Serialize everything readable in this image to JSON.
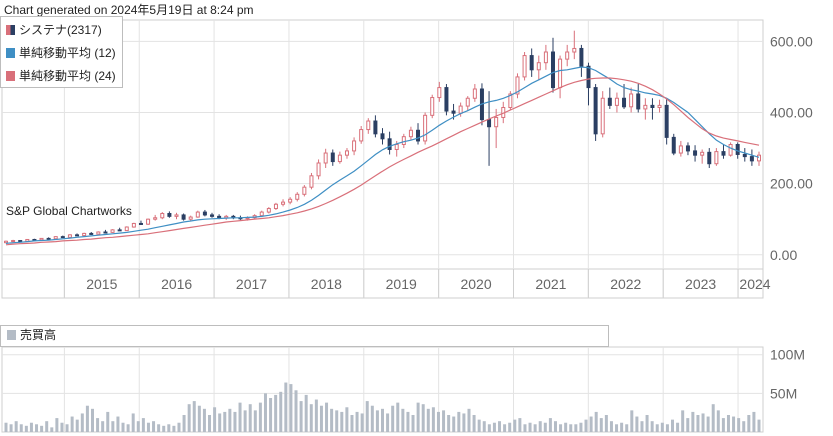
{
  "header": {
    "generated": "Chart generated on 2024年5月19日 at 8:24 pm"
  },
  "legend": {
    "items": [
      {
        "label": "システナ(2317)",
        "color": "#d9707a"
      },
      {
        "label": "単純移動平均 (12)",
        "color": "#3f8fc4"
      },
      {
        "label": "単純移動平均 (24)",
        "color": "#d9707a"
      }
    ]
  },
  "watermark": "S&P Global Chartworks",
  "volume_legend": {
    "label": "売買高"
  },
  "colors": {
    "up": "#d9707a",
    "down": "#2b3f63",
    "sma12": "#3f8fc4",
    "sma24": "#d9707a",
    "volume": "#b4bcc6",
    "grid": "#e3e3e3"
  },
  "chart_data": [
    {
      "type": "candlestick",
      "x_ticks": [
        "2015",
        "2016",
        "2017",
        "2018",
        "2019",
        "2020",
        "2021",
        "2022",
        "2023",
        "2024"
      ],
      "y_ticks": [
        "0.00",
        "200.00",
        "400.00",
        "600.00"
      ],
      "ylim": [
        -40,
        660
      ],
      "x_start": "2014-03",
      "x_end": "2024-05",
      "ohlc": [
        [
          34,
          40,
          32,
          38
        ],
        [
          38,
          42,
          36,
          40
        ],
        [
          40,
          41,
          37,
          38
        ],
        [
          38,
          44,
          37,
          43
        ],
        [
          43,
          45,
          41,
          42
        ],
        [
          42,
          47,
          41,
          46
        ],
        [
          46,
          49,
          44,
          45
        ],
        [
          45,
          52,
          44,
          51
        ],
        [
          51,
          54,
          48,
          49
        ],
        [
          49,
          58,
          48,
          56
        ],
        [
          56,
          60,
          53,
          54
        ],
        [
          54,
          62,
          53,
          60
        ],
        [
          60,
          64,
          56,
          58
        ],
        [
          58,
          66,
          57,
          64
        ],
        [
          64,
          70,
          62,
          63
        ],
        [
          63,
          72,
          62,
          70
        ],
        [
          70,
          76,
          67,
          68
        ],
        [
          68,
          80,
          67,
          78
        ],
        [
          78,
          90,
          76,
          88
        ],
        [
          88,
          96,
          84,
          86
        ],
        [
          86,
          102,
          84,
          100
        ],
        [
          100,
          112,
          96,
          104
        ],
        [
          104,
          120,
          100,
          116
        ],
        [
          116,
          122,
          104,
          108
        ],
        [
          108,
          118,
          100,
          112
        ],
        [
          112,
          116,
          96,
          100
        ],
        [
          100,
          110,
          96,
          106
        ],
        [
          106,
          124,
          104,
          120
        ],
        [
          120,
          126,
          108,
          112
        ],
        [
          112,
          118,
          104,
          108
        ],
        [
          108,
          114,
          100,
          104
        ],
        [
          104,
          112,
          98,
          108
        ],
        [
          108,
          112,
          100,
          104
        ],
        [
          104,
          110,
          98,
          102
        ],
        [
          102,
          108,
          96,
          104
        ],
        [
          104,
          114,
          100,
          110
        ],
        [
          110,
          124,
          106,
          120
        ],
        [
          120,
          134,
          116,
          130
        ],
        [
          130,
          146,
          126,
          142
        ],
        [
          142,
          156,
          136,
          148
        ],
        [
          148,
          162,
          142,
          156
        ],
        [
          156,
          176,
          150,
          170
        ],
        [
          170,
          196,
          164,
          190
        ],
        [
          190,
          230,
          184,
          222
        ],
        [
          222,
          268,
          212,
          258
        ],
        [
          258,
          298,
          244,
          286
        ],
        [
          286,
          296,
          250,
          262
        ],
        [
          262,
          290,
          256,
          280
        ],
        [
          280,
          300,
          270,
          292
        ],
        [
          292,
          330,
          280,
          320
        ],
        [
          320,
          362,
          312,
          352
        ],
        [
          352,
          384,
          340,
          376
        ],
        [
          376,
          392,
          330,
          340
        ],
        [
          340,
          356,
          310,
          326
        ],
        [
          326,
          346,
          282,
          296
        ],
        [
          296,
          320,
          276,
          310
        ],
        [
          310,
          340,
          300,
          332
        ],
        [
          332,
          360,
          322,
          350
        ],
        [
          350,
          370,
          310,
          320
        ],
        [
          320,
          400,
          310,
          392
        ],
        [
          392,
          450,
          384,
          442
        ],
        [
          442,
          486,
          430,
          470
        ],
        [
          470,
          480,
          392,
          404
        ],
        [
          404,
          424,
          380,
          398
        ],
        [
          398,
          428,
          388,
          418
        ],
        [
          418,
          446,
          404,
          440
        ],
        [
          440,
          480,
          430,
          466
        ],
        [
          466,
          482,
          364,
          380
        ],
        [
          380,
          460,
          250,
          360
        ],
        [
          360,
          410,
          300,
          386
        ],
        [
          386,
          430,
          370,
          414
        ],
        [
          414,
          460,
          406,
          452
        ],
        [
          452,
          510,
          440,
          500
        ],
        [
          500,
          570,
          490,
          560
        ],
        [
          560,
          580,
          500,
          520
        ],
        [
          520,
          560,
          490,
          540
        ],
        [
          540,
          590,
          520,
          570
        ],
        [
          570,
          610,
          456,
          470
        ],
        [
          470,
          560,
          440,
          550
        ],
        [
          550,
          590,
          530,
          570
        ],
        [
          570,
          630,
          550,
          580
        ],
        [
          580,
          590,
          500,
          530
        ],
        [
          530,
          540,
          420,
          470
        ],
        [
          470,
          480,
          320,
          340
        ],
        [
          340,
          460,
          330,
          440
        ],
        [
          440,
          470,
          410,
          420
        ],
        [
          420,
          456,
          400,
          440
        ],
        [
          440,
          480,
          410,
          416
        ],
        [
          416,
          470,
          400,
          452
        ],
        [
          452,
          480,
          400,
          410
        ],
        [
          410,
          440,
          380,
          420
        ],
        [
          420,
          440,
          380,
          414
        ],
        [
          414,
          436,
          400,
          420
        ],
        [
          420,
          440,
          310,
          330
        ],
        [
          330,
          340,
          280,
          286
        ],
        [
          286,
          320,
          276,
          306
        ],
        [
          306,
          316,
          280,
          292
        ],
        [
          292,
          308,
          262,
          280
        ],
        [
          280,
          296,
          256,
          288
        ],
        [
          288,
          300,
          244,
          256
        ],
        [
          256,
          300,
          250,
          290
        ],
        [
          290,
          310,
          270,
          280
        ],
        [
          280,
          316,
          276,
          310
        ],
        [
          310,
          316,
          270,
          282
        ],
        [
          282,
          300,
          262,
          276
        ],
        [
          276,
          296,
          250,
          264
        ],
        [
          264,
          290,
          250,
          280
        ]
      ],
      "series": [
        {
          "name": "単純移動平均 (12)",
          "values": [
            32,
            34,
            35,
            37,
            39,
            40,
            41,
            43,
            45,
            47,
            49,
            51,
            53,
            55,
            57,
            59,
            61,
            63,
            66,
            69,
            72,
            76,
            80,
            84,
            88,
            92,
            95,
            98,
            100,
            101,
            102,
            103,
            104,
            104,
            105,
            106,
            108,
            111,
            115,
            120,
            126,
            133,
            142,
            153,
            167,
            182,
            197,
            210,
            222,
            235,
            250,
            266,
            282,
            295,
            305,
            312,
            318,
            322,
            328,
            337,
            350,
            364,
            376,
            387,
            397,
            405,
            415,
            424,
            430,
            434,
            440,
            448,
            458,
            470,
            482,
            492,
            502,
            512,
            518,
            520,
            524,
            528,
            526,
            518,
            506,
            494,
            480,
            470,
            464,
            460,
            455,
            452,
            448,
            440,
            428,
            414,
            400,
            380,
            360,
            340,
            322,
            310,
            300,
            292,
            286,
            280,
            274
          ]
        },
        {
          "name": "単純移動平均 (24)",
          "values": [
            28,
            30,
            31,
            32,
            33,
            35,
            36,
            37,
            39,
            40,
            41,
            43,
            44,
            46,
            48,
            49,
            51,
            53,
            55,
            57,
            59,
            62,
            65,
            68,
            71,
            74,
            77,
            80,
            83,
            86,
            89,
            92,
            94,
            96,
            98,
            100,
            102,
            104,
            107,
            110,
            114,
            118,
            123,
            129,
            136,
            144,
            153,
            163,
            173,
            184,
            196,
            209,
            222,
            235,
            247,
            258,
            268,
            278,
            288,
            297,
            306,
            316,
            326,
            336,
            346,
            355,
            364,
            373,
            382,
            390,
            398,
            407,
            416,
            425,
            434,
            443,
            452,
            461,
            470,
            478,
            485,
            490,
            494,
            496,
            497,
            497,
            495,
            492,
            488,
            482,
            474,
            464,
            452,
            438,
            422,
            404,
            386,
            370,
            354,
            342,
            334,
            328,
            324,
            320,
            316,
            312,
            308
          ]
        }
      ]
    },
    {
      "type": "bar",
      "title": "売買高",
      "y_ticks": [
        "50M",
        "100M"
      ],
      "ylim": [
        0,
        110
      ],
      "values": [
        12,
        10,
        14,
        10,
        8,
        12,
        10,
        8,
        14,
        6,
        18,
        12,
        10,
        20,
        16,
        24,
        34,
        30,
        18,
        14,
        26,
        14,
        20,
        12,
        10,
        24,
        14,
        18,
        12,
        14,
        10,
        8,
        10,
        8,
        12,
        22,
        36,
        40,
        34,
        30,
        22,
        32,
        24,
        26,
        30,
        26,
        38,
        28,
        36,
        28,
        38,
        50,
        44,
        48,
        52,
        64,
        62,
        54,
        40,
        48,
        36,
        42,
        34,
        38,
        30,
        28,
        26,
        32,
        22,
        26,
        24,
        40,
        34,
        28,
        30,
        24,
        34,
        38,
        30,
        26,
        22,
        38,
        36,
        30,
        32,
        26,
        28,
        22,
        20,
        26,
        24,
        30,
        22,
        16,
        14,
        10,
        12,
        14,
        10,
        12,
        16,
        18,
        10,
        12,
        10,
        14,
        12,
        18,
        14,
        10,
        12,
        10,
        10,
        12,
        16,
        20,
        26,
        18,
        22,
        14,
        10,
        12,
        10,
        28,
        20,
        14,
        22,
        14,
        10,
        12,
        10,
        16,
        12,
        28,
        18,
        26,
        22,
        24,
        20,
        36,
        28,
        18,
        22,
        20,
        18,
        14,
        22,
        26,
        16
      ]
    }
  ]
}
